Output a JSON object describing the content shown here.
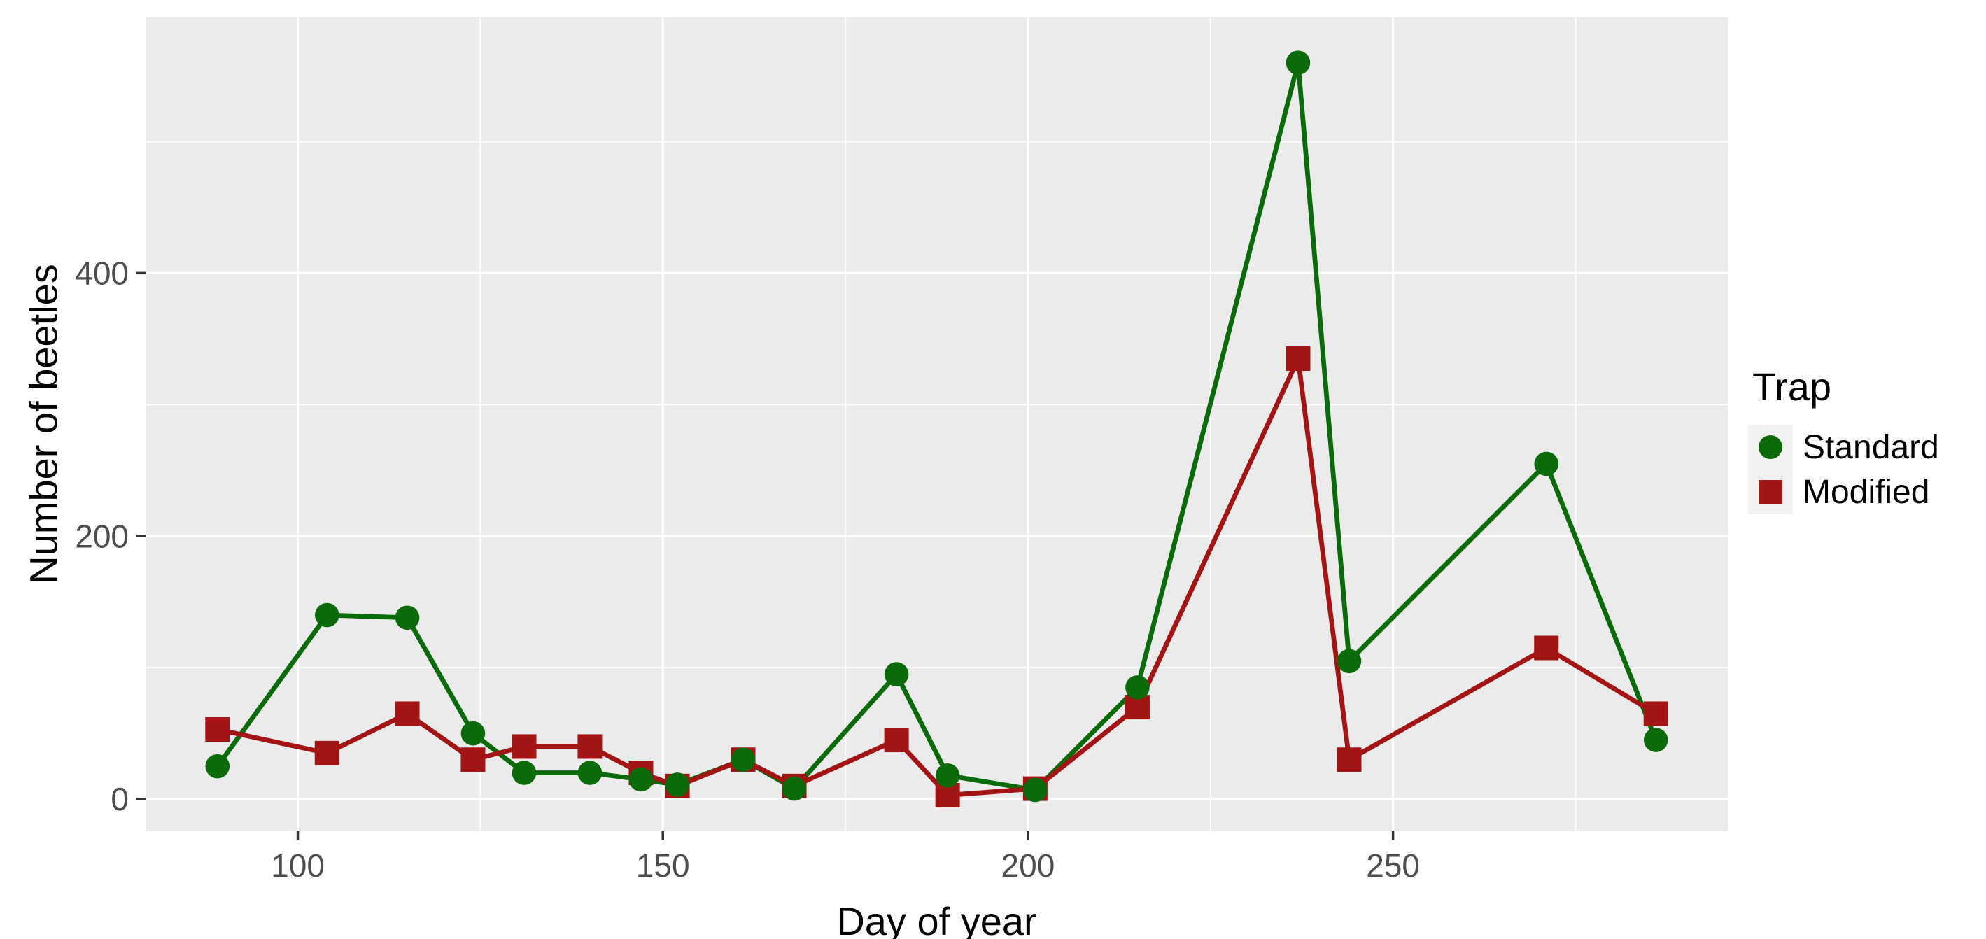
{
  "chart_data": {
    "type": "line",
    "title": "",
    "xlabel": "Day of year",
    "ylabel": "Number of beetles",
    "x": [
      89,
      104,
      115,
      124,
      131,
      140,
      147,
      152,
      161,
      168,
      182,
      189,
      201,
      215,
      237,
      244,
      271,
      286
    ],
    "series": [
      {
        "name": "Standard",
        "marker": "circle",
        "color": "#0B6B0B",
        "values": [
          25,
          140,
          138,
          50,
          20,
          20,
          15,
          11,
          30,
          8,
          95,
          18,
          7,
          85,
          560,
          105,
          255,
          45
        ]
      },
      {
        "name": "Modified",
        "marker": "square",
        "color": "#A31515",
        "values": [
          53,
          35,
          65,
          30,
          40,
          40,
          20,
          10,
          30,
          10,
          45,
          3,
          8,
          70,
          335,
          30,
          115,
          65
        ]
      }
    ],
    "xlim": [
      79.15,
      295.85
    ],
    "ylim": [
      -24.4,
      594.4
    ],
    "x_ticks": [
      100,
      150,
      200,
      250
    ],
    "x_minor_ticks": [
      125,
      175,
      225,
      275
    ],
    "y_ticks": [
      0,
      200,
      400
    ],
    "y_minor_ticks": [
      100,
      300,
      500
    ],
    "grid": true,
    "legend_position": "right",
    "panel_bg": "#EBEBEB",
    "grid_color": "#FFFFFF",
    "tick_color": "#333333",
    "tick_text_color": "#4D4D4D",
    "legend": {
      "title": "Trap"
    }
  }
}
